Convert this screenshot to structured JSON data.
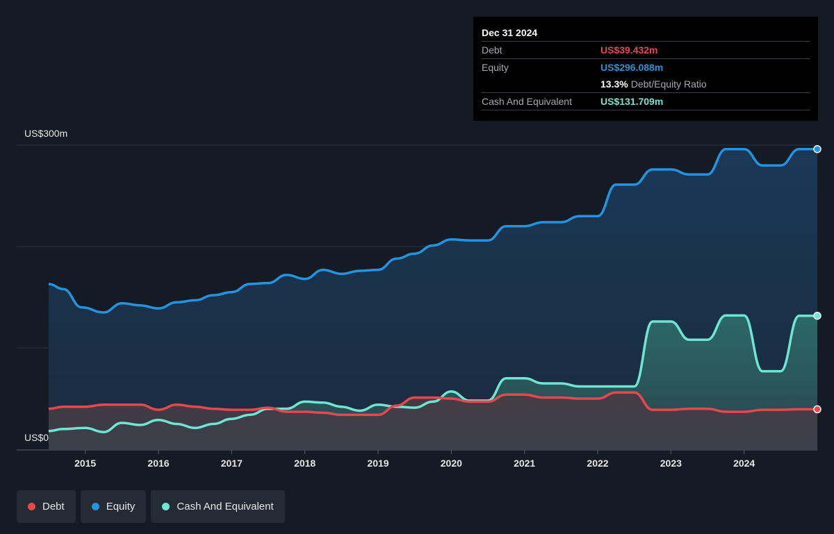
{
  "tooltip": {
    "date": "Dec 31 2024",
    "rows": [
      {
        "key": "Debt",
        "value": "US$39.432m",
        "color": "#e8474f"
      },
      {
        "key": "Equity",
        "value": "US$296.088m",
        "color": "#2394df"
      }
    ],
    "ratio_pct": "13.3%",
    "ratio_label": "Debt/Equity Ratio",
    "cash": {
      "key": "Cash And Equivalent",
      "value": "US$131.709m",
      "color": "#6ee6d4"
    }
  },
  "legend": [
    {
      "label": "Debt",
      "color": "#e8474f"
    },
    {
      "label": "Equity",
      "color": "#2394df"
    },
    {
      "label": "Cash And Equivalent",
      "color": "#6ee6d4"
    }
  ],
  "chart_data": {
    "type": "area",
    "y_axis_labels": [
      "US$300m",
      "US$0"
    ],
    "ylim": [
      0,
      300
    ],
    "x_tick_labels": [
      "2015",
      "2016",
      "2017",
      "2018",
      "2019",
      "2020",
      "2021",
      "2022",
      "2023",
      "2024"
    ],
    "grid": true,
    "legend_position": "bottom-left",
    "series": [
      {
        "name": "Equity",
        "color": "#2394df",
        "x": [
          2014.5,
          2014.7,
          2014.95,
          2015.25,
          2015.5,
          2015.75,
          2016.0,
          2016.25,
          2016.5,
          2016.75,
          2017.0,
          2017.25,
          2017.5,
          2017.75,
          2018.0,
          2018.25,
          2018.5,
          2018.75,
          2019.0,
          2019.25,
          2019.5,
          2019.75,
          2020.0,
          2020.25,
          2020.5,
          2020.75,
          2021.0,
          2021.25,
          2021.5,
          2021.75,
          2022.0,
          2022.25,
          2022.5,
          2022.75,
          2023.0,
          2023.25,
          2023.5,
          2023.75,
          2024.0,
          2024.25,
          2024.5,
          2024.75,
          2025.0
        ],
        "values": [
          163,
          158,
          140,
          135,
          144,
          142,
          139,
          145,
          147,
          152,
          155,
          163,
          164,
          172,
          168,
          177,
          173,
          176,
          177,
          188,
          193,
          201,
          207,
          206,
          206,
          220,
          220,
          224,
          224,
          230,
          230,
          261,
          261,
          276,
          276,
          271,
          271,
          296,
          296,
          280,
          280,
          296,
          296.088
        ]
      },
      {
        "name": "Cash And Equivalent",
        "color": "#6ee6d4",
        "x": [
          2014.5,
          2014.7,
          2015.0,
          2015.25,
          2015.5,
          2015.75,
          2016.0,
          2016.25,
          2016.5,
          2016.75,
          2017.0,
          2017.25,
          2017.5,
          2017.75,
          2018.0,
          2018.25,
          2018.5,
          2018.75,
          2019.0,
          2019.25,
          2019.5,
          2019.75,
          2020.0,
          2020.25,
          2020.5,
          2020.75,
          2021.0,
          2021.25,
          2021.5,
          2021.75,
          2022.0,
          2022.25,
          2022.5,
          2022.75,
          2023.0,
          2023.25,
          2023.5,
          2023.75,
          2024.0,
          2024.25,
          2024.5,
          2024.75,
          2025.0
        ],
        "values": [
          18,
          20,
          21,
          17,
          26,
          24,
          29,
          25,
          21,
          25,
          30,
          34,
          40,
          40,
          47,
          46,
          42,
          38,
          44,
          42,
          41,
          47,
          57,
          48,
          48,
          70,
          70,
          65,
          65,
          62,
          62,
          62,
          62,
          126,
          126,
          108,
          108,
          132,
          132,
          77,
          77,
          131.709,
          131.709
        ]
      },
      {
        "name": "Debt",
        "color": "#e8474f",
        "x": [
          2014.5,
          2014.7,
          2015.0,
          2015.25,
          2015.5,
          2015.75,
          2016.0,
          2016.25,
          2016.5,
          2016.75,
          2017.0,
          2017.25,
          2017.5,
          2017.75,
          2018.0,
          2018.25,
          2018.5,
          2018.75,
          2019.0,
          2019.25,
          2019.5,
          2019.75,
          2020.0,
          2020.25,
          2020.5,
          2020.75,
          2021.0,
          2021.25,
          2021.5,
          2021.75,
          2022.0,
          2022.25,
          2022.5,
          2022.75,
          2023.0,
          2023.25,
          2023.5,
          2023.75,
          2024.0,
          2024.25,
          2024.5,
          2024.75,
          2025.0
        ],
        "values": [
          40,
          42,
          42,
          44,
          44,
          44,
          39,
          44,
          42,
          40,
          39,
          39,
          41,
          37,
          37,
          36,
          34,
          34,
          34,
          43,
          51,
          51,
          50,
          47,
          47,
          54,
          54,
          51,
          51,
          50,
          50,
          56,
          56,
          39,
          39,
          40,
          40,
          37,
          37,
          39,
          39,
          39.432,
          39.432
        ]
      }
    ]
  }
}
